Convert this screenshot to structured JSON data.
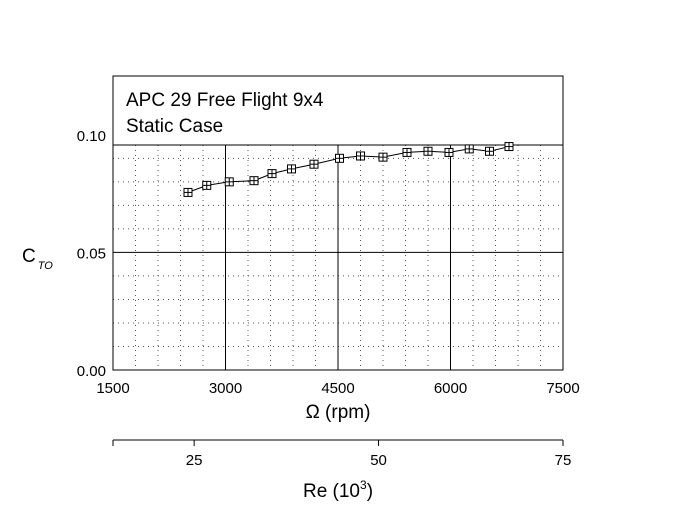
{
  "chart_data": {
    "type": "line",
    "title_lines": [
      "APC 29 Free Flight 9x4",
      "Static Case"
    ],
    "xlabel": "Ω (rpm)",
    "ylabel_main": "C",
    "ylabel_sub": "TO",
    "xlim": [
      1500,
      7500
    ],
    "ylim": [
      0.0,
      0.125
    ],
    "x_ticks": [
      1500,
      3000,
      4500,
      6000,
      7500
    ],
    "x_tick_labels": [
      "1500",
      "3000",
      "4500",
      "6000",
      "7500"
    ],
    "y_ticks": [
      0.0,
      0.05,
      0.1
    ],
    "y_tick_labels": [
      "0.00",
      "0.05",
      "0.10"
    ],
    "minor_x_step": 300,
    "minor_y_step": 0.01,
    "grid": true,
    "series": [
      {
        "name": "CTO",
        "marker": "square-plus",
        "x": [
          2500,
          2750,
          3050,
          3380,
          3620,
          3880,
          4180,
          4520,
          4800,
          5100,
          5420,
          5700,
          5980,
          6250,
          6520,
          6780
        ],
        "y": [
          0.0755,
          0.0785,
          0.08,
          0.0805,
          0.0835,
          0.0855,
          0.0875,
          0.09,
          0.091,
          0.0905,
          0.0925,
          0.093,
          0.0925,
          0.094,
          0.093,
          0.095
        ]
      }
    ],
    "secondary_axis": {
      "label_main": "Re (10",
      "label_exp": "3",
      "label_close": ")",
      "lim": [
        14,
        75
      ],
      "ticks": [
        25,
        50,
        75
      ],
      "tick_labels": [
        "25",
        "50",
        "75"
      ]
    }
  }
}
